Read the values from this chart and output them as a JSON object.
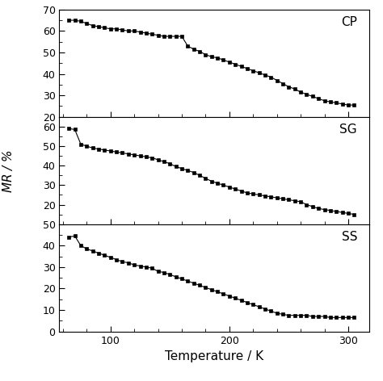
{
  "cp_x": [
    65,
    70,
    75,
    80,
    85,
    90,
    95,
    100,
    105,
    110,
    115,
    120,
    125,
    130,
    135,
    140,
    145,
    150,
    155,
    160,
    165,
    170,
    175,
    180,
    185,
    190,
    195,
    200,
    205,
    210,
    215,
    220,
    225,
    230,
    235,
    240,
    245,
    250,
    255,
    260,
    265,
    270,
    275,
    280,
    285,
    290,
    295,
    300,
    305
  ],
  "cp_y": [
    65.0,
    65.0,
    64.5,
    63.5,
    62.5,
    62.0,
    61.5,
    61.0,
    61.0,
    60.5,
    60.0,
    60.0,
    59.5,
    59.0,
    58.5,
    58.0,
    57.5,
    57.5,
    57.5,
    57.5,
    53.0,
    51.5,
    50.5,
    49.0,
    48.0,
    47.5,
    46.5,
    45.5,
    44.5,
    43.5,
    42.5,
    41.5,
    40.5,
    39.5,
    38.5,
    37.0,
    35.5,
    34.0,
    33.0,
    31.5,
    30.5,
    29.5,
    28.5,
    27.5,
    27.0,
    26.5,
    26.0,
    25.5,
    25.5
  ],
  "sg_x": [
    65,
    70,
    75,
    80,
    85,
    90,
    95,
    100,
    105,
    110,
    115,
    120,
    125,
    130,
    135,
    140,
    145,
    150,
    155,
    160,
    165,
    170,
    175,
    180,
    185,
    190,
    195,
    200,
    205,
    210,
    215,
    220,
    225,
    230,
    235,
    240,
    245,
    250,
    255,
    260,
    265,
    270,
    275,
    280,
    285,
    290,
    295,
    300,
    305
  ],
  "sg_y": [
    59.0,
    58.5,
    51.0,
    50.0,
    49.0,
    48.5,
    48.0,
    47.5,
    47.0,
    46.5,
    46.0,
    45.5,
    45.0,
    44.5,
    44.0,
    43.0,
    42.0,
    41.0,
    39.5,
    38.5,
    37.5,
    36.5,
    35.0,
    33.5,
    32.0,
    31.0,
    30.0,
    29.0,
    28.0,
    27.0,
    26.0,
    25.5,
    25.0,
    24.5,
    24.0,
    23.5,
    23.0,
    22.5,
    22.0,
    21.5,
    20.0,
    19.0,
    18.0,
    17.5,
    17.0,
    16.5,
    16.0,
    15.5,
    15.0
  ],
  "ss_x": [
    65,
    70,
    75,
    80,
    85,
    90,
    95,
    100,
    105,
    110,
    115,
    120,
    125,
    130,
    135,
    140,
    145,
    150,
    155,
    160,
    165,
    170,
    175,
    180,
    185,
    190,
    195,
    200,
    205,
    210,
    215,
    220,
    225,
    230,
    235,
    240,
    245,
    250,
    255,
    260,
    265,
    270,
    275,
    280,
    285,
    290,
    295,
    300,
    305
  ],
  "ss_y": [
    44.0,
    44.5,
    40.0,
    38.5,
    37.5,
    36.5,
    35.5,
    34.5,
    33.5,
    32.5,
    32.0,
    31.0,
    30.5,
    30.0,
    29.5,
    28.0,
    27.5,
    26.5,
    25.5,
    24.5,
    23.5,
    22.5,
    21.5,
    20.5,
    19.5,
    18.5,
    17.5,
    16.5,
    15.5,
    14.5,
    13.5,
    12.5,
    11.5,
    10.5,
    9.5,
    8.5,
    8.0,
    7.5,
    7.5,
    7.5,
    7.5,
    7.0,
    7.0,
    7.0,
    6.5,
    6.5,
    6.5,
    6.5,
    6.5
  ],
  "cp_ylim": [
    20,
    70
  ],
  "sg_ylim": [
    10,
    65
  ],
  "ss_ylim": [
    0,
    50
  ],
  "cp_yticks": [
    20,
    30,
    40,
    50,
    60,
    70
  ],
  "sg_yticks": [
    20,
    30,
    40,
    50,
    60
  ],
  "ss_yticks": [
    0,
    10,
    20,
    30,
    40,
    50
  ],
  "xlim": [
    57,
    318
  ],
  "xticks": [
    100,
    200,
    300
  ],
  "xlabel": "Temperature / K",
  "ylabel": "$MR$ / %",
  "labels": [
    "CP",
    "SG",
    "SS"
  ],
  "marker": "s",
  "markersize": 3.5,
  "linewidth": 0.8,
  "color": "black",
  "bg_color": "white"
}
